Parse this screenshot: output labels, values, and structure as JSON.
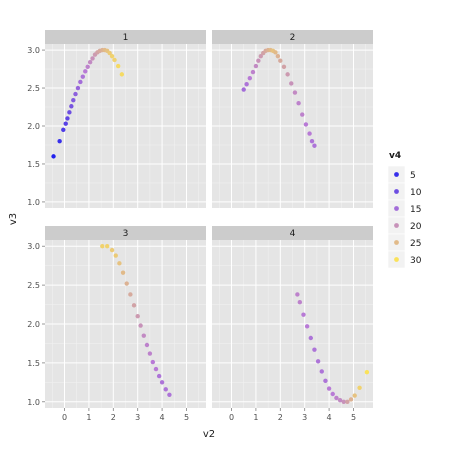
{
  "chart_data": {
    "type": "scatter",
    "facet_wrap": "v1",
    "xlabel": "v2",
    "ylabel": "v3",
    "xlim": [
      -0.8,
      5.8
    ],
    "ylim": [
      0.92,
      3.08
    ],
    "x_ticks": [
      0,
      1,
      2,
      3,
      4,
      5
    ],
    "y_ticks": [
      1.0,
      1.5,
      2.0,
      2.5,
      3.0
    ],
    "y_tick_labels": [
      "1.0",
      "1.5",
      "2.0",
      "2.5",
      "3.0"
    ],
    "grid": true,
    "legend_position": "right",
    "color": {
      "variable": "v4",
      "range": [
        3,
        31
      ],
      "low": "#2222ee",
      "mid": "#b87ad6",
      "high": "#ffea50",
      "breaks": [
        5,
        10,
        15,
        20,
        25,
        30
      ]
    },
    "panels": [
      {
        "label": "1",
        "points": [
          [
            -0.45,
            1.6,
            3
          ],
          [
            -0.2,
            1.8,
            5
          ],
          [
            -0.05,
            1.95,
            7
          ],
          [
            0.05,
            2.03,
            8
          ],
          [
            0.12,
            2.1,
            9
          ],
          [
            0.2,
            2.18,
            10
          ],
          [
            0.28,
            2.26,
            11
          ],
          [
            0.36,
            2.34,
            12
          ],
          [
            0.45,
            2.42,
            13
          ],
          [
            0.55,
            2.5,
            14
          ],
          [
            0.65,
            2.58,
            15
          ],
          [
            0.75,
            2.65,
            16
          ],
          [
            0.85,
            2.72,
            17
          ],
          [
            0.95,
            2.78,
            18
          ],
          [
            1.05,
            2.84,
            19
          ],
          [
            1.15,
            2.89,
            20
          ],
          [
            1.25,
            2.94,
            21
          ],
          [
            1.35,
            2.97,
            22
          ],
          [
            1.45,
            2.99,
            23
          ],
          [
            1.55,
            3.0,
            24
          ],
          [
            1.65,
            3.0,
            25
          ],
          [
            1.75,
            2.99,
            26
          ],
          [
            1.85,
            2.96,
            27
          ],
          [
            1.95,
            2.92,
            28
          ],
          [
            2.05,
            2.87,
            28
          ],
          [
            2.2,
            2.79,
            29
          ],
          [
            2.35,
            2.68,
            29
          ]
        ]
      },
      {
        "label": "2",
        "points": [
          [
            0.5,
            2.48,
            15
          ],
          [
            0.62,
            2.55,
            16
          ],
          [
            0.75,
            2.63,
            17
          ],
          [
            0.88,
            2.71,
            18
          ],
          [
            1.0,
            2.79,
            19
          ],
          [
            1.1,
            2.86,
            20
          ],
          [
            1.2,
            2.92,
            21
          ],
          [
            1.3,
            2.96,
            22
          ],
          [
            1.4,
            2.99,
            23
          ],
          [
            1.5,
            3.0,
            24
          ],
          [
            1.6,
            3.0,
            25
          ],
          [
            1.7,
            2.99,
            26
          ],
          [
            1.8,
            2.97,
            25
          ],
          [
            1.9,
            2.92,
            24
          ],
          [
            2.0,
            2.86,
            23
          ],
          [
            2.15,
            2.78,
            22
          ],
          [
            2.3,
            2.68,
            21
          ],
          [
            2.45,
            2.56,
            20
          ],
          [
            2.6,
            2.44,
            19
          ],
          [
            2.75,
            2.3,
            18
          ],
          [
            2.9,
            2.15,
            18
          ],
          [
            3.05,
            2.02,
            17
          ],
          [
            3.2,
            1.9,
            17
          ],
          [
            3.3,
            1.8,
            16
          ],
          [
            3.4,
            1.74,
            16
          ]
        ]
      },
      {
        "label": "3",
        "points": [
          [
            1.55,
            3.0,
            28
          ],
          [
            1.75,
            3.0,
            28
          ],
          [
            1.95,
            2.95,
            27
          ],
          [
            2.1,
            2.88,
            27
          ],
          [
            2.25,
            2.78,
            26
          ],
          [
            2.4,
            2.66,
            25
          ],
          [
            2.55,
            2.52,
            24
          ],
          [
            2.7,
            2.38,
            23
          ],
          [
            2.85,
            2.24,
            22
          ],
          [
            3.0,
            2.1,
            21
          ],
          [
            3.12,
            1.98,
            20
          ],
          [
            3.25,
            1.85,
            19
          ],
          [
            3.38,
            1.73,
            18
          ],
          [
            3.5,
            1.62,
            18
          ],
          [
            3.62,
            1.51,
            17
          ],
          [
            3.75,
            1.42,
            17
          ],
          [
            3.88,
            1.33,
            16
          ],
          [
            4.0,
            1.25,
            16
          ],
          [
            4.15,
            1.16,
            16
          ],
          [
            4.3,
            1.09,
            16
          ]
        ]
      },
      {
        "label": "4",
        "points": [
          [
            2.7,
            2.38,
            18
          ],
          [
            2.8,
            2.28,
            18
          ],
          [
            2.95,
            2.12,
            17
          ],
          [
            3.1,
            1.97,
            17
          ],
          [
            3.25,
            1.82,
            16
          ],
          [
            3.4,
            1.67,
            16
          ],
          [
            3.55,
            1.52,
            16
          ],
          [
            3.7,
            1.39,
            16
          ],
          [
            3.85,
            1.27,
            16
          ],
          [
            4.0,
            1.17,
            17
          ],
          [
            4.15,
            1.1,
            17
          ],
          [
            4.3,
            1.05,
            18
          ],
          [
            4.45,
            1.02,
            19
          ],
          [
            4.6,
            1.0,
            20
          ],
          [
            4.75,
            1.0,
            22
          ],
          [
            4.9,
            1.03,
            24
          ],
          [
            5.05,
            1.08,
            26
          ],
          [
            5.25,
            1.18,
            28
          ],
          [
            5.55,
            1.38,
            30
          ]
        ]
      }
    ]
  }
}
